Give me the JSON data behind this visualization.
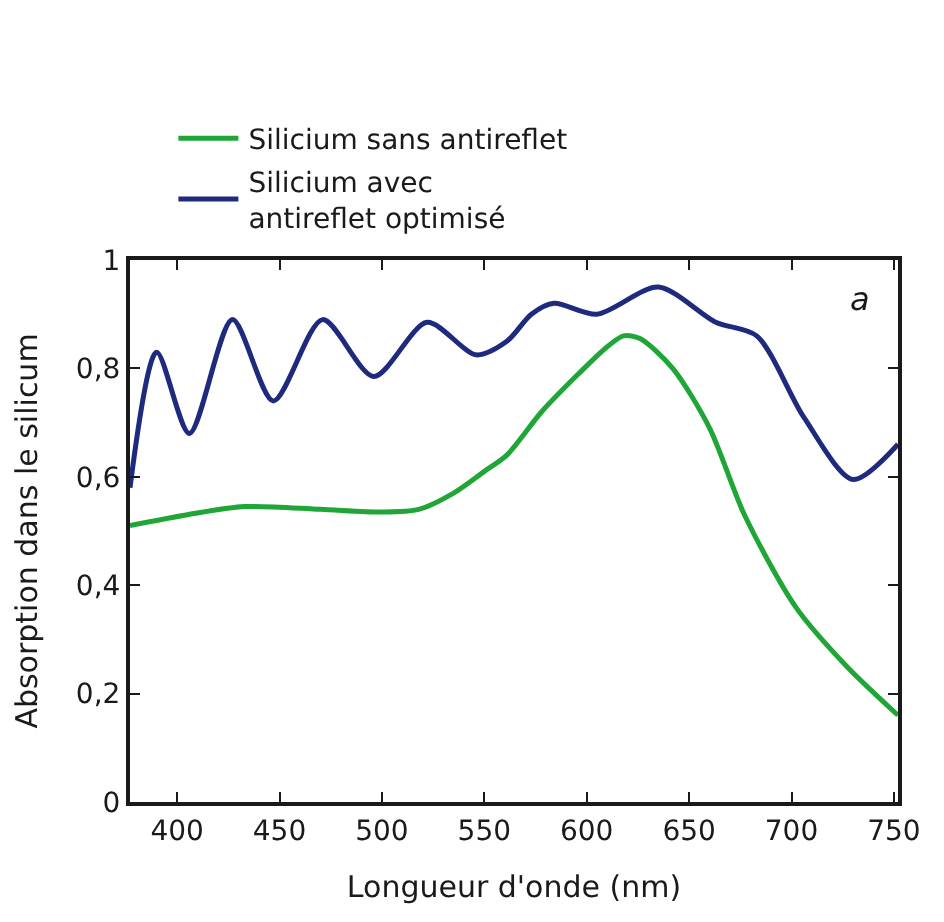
{
  "chart_data": {
    "type": "line",
    "xlabel": "Longueur d'onde (nm)",
    "ylabel": "Absorption dans le silicum",
    "xlim": [
      377,
      752
    ],
    "ylim": [
      0,
      1
    ],
    "xticks": [
      400,
      450,
      500,
      550,
      600,
      650,
      700,
      750
    ],
    "yticks": [
      {
        "value": 0,
        "label": "0"
      },
      {
        "value": 0.2,
        "label": "0,2"
      },
      {
        "value": 0.4,
        "label": "0,4"
      },
      {
        "value": 0.6,
        "label": "0,6"
      },
      {
        "value": 0.8,
        "label": "0,8"
      },
      {
        "value": 1,
        "label": "1"
      }
    ],
    "legend": "top",
    "marker": "none",
    "line_style": "solid",
    "annotations": [
      "a"
    ],
    "series": [
      {
        "name": "Silicium sans antireflet",
        "color": "#1fa637",
        "x": [
          377,
          405,
          433,
          470,
          500,
          518,
          535,
          550,
          561,
          578,
          596,
          610,
          618,
          626,
          642,
          660,
          677,
          702,
          727,
          752
        ],
        "values": [
          0.51,
          0.53,
          0.545,
          0.54,
          0.535,
          0.54,
          0.57,
          0.61,
          0.64,
          0.72,
          0.79,
          0.84,
          0.86,
          0.855,
          0.8,
          0.69,
          0.53,
          0.36,
          0.25,
          0.16
        ]
      },
      {
        "name": "Silicium avec antireflet optimisé",
        "color": "#1e2a7e",
        "x": [
          377,
          390,
          406,
          427,
          447,
          471,
          496,
          522,
          546,
          561,
          573,
          584,
          605,
          635,
          663,
          683,
          706,
          730,
          752
        ],
        "values": [
          0.58,
          0.83,
          0.68,
          0.89,
          0.74,
          0.89,
          0.785,
          0.885,
          0.825,
          0.85,
          0.9,
          0.92,
          0.9,
          0.95,
          0.885,
          0.86,
          0.71,
          0.595,
          0.66
        ]
      }
    ]
  }
}
